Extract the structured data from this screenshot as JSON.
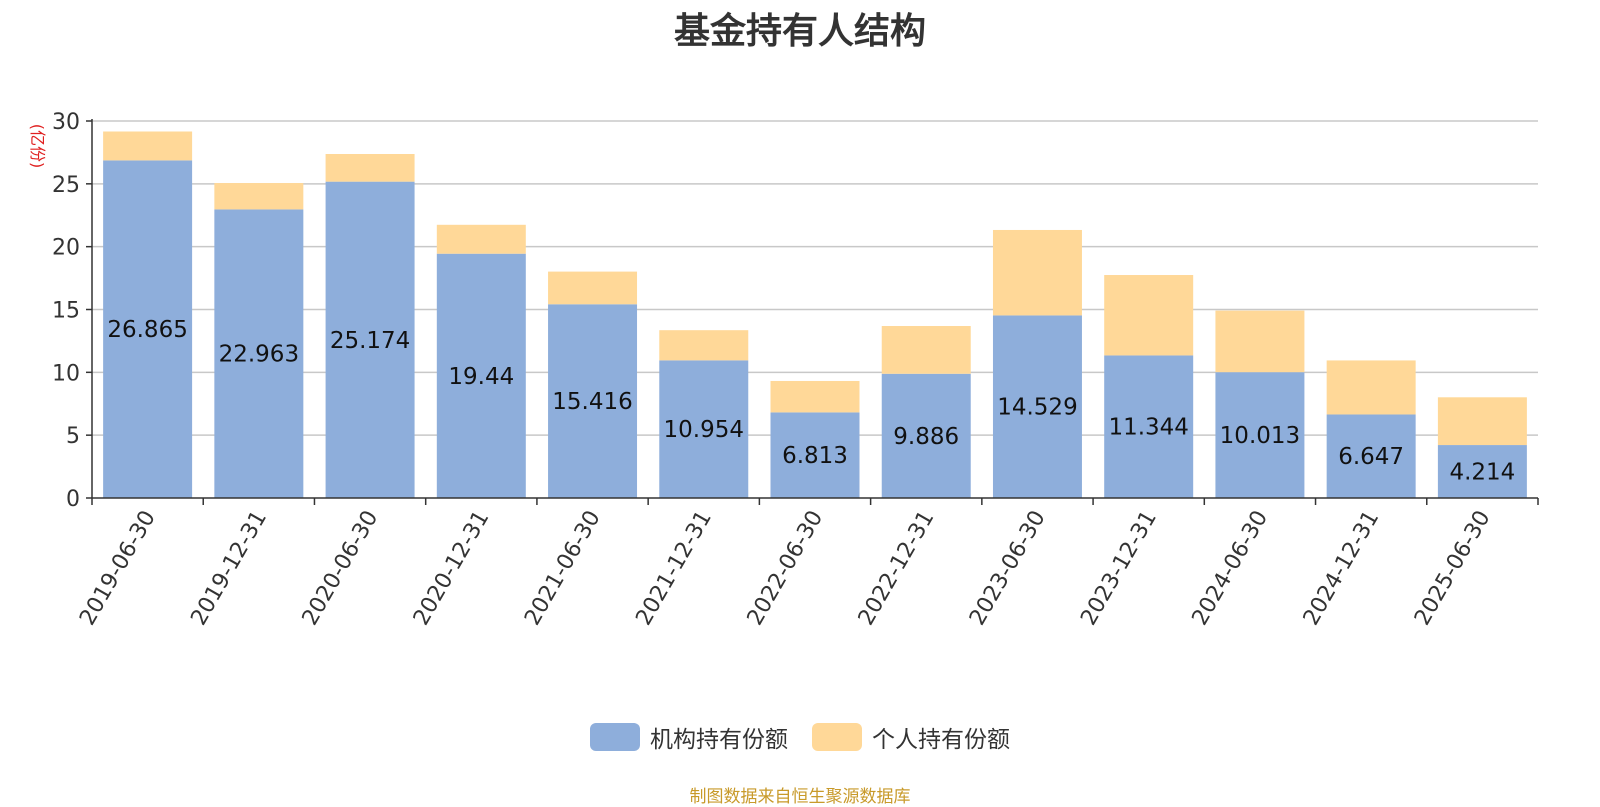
{
  "chart_data": {
    "type": "bar",
    "stacked": true,
    "title": "基金持有人结构",
    "ylabel": "(亿份)",
    "ylim": [
      0,
      30
    ],
    "yticks": [
      0,
      5,
      10,
      15,
      20,
      25,
      30
    ],
    "grid": true,
    "legend_position": "bottom",
    "categories": [
      "2019-06-30",
      "2019-12-31",
      "2020-06-30",
      "2020-12-31",
      "2021-06-30",
      "2021-12-31",
      "2022-06-30",
      "2022-12-31",
      "2023-06-30",
      "2023-12-31",
      "2024-06-30",
      "2024-12-31",
      "2025-06-30"
    ],
    "series": [
      {
        "name": "机构持有份额",
        "color": "#8eaedb",
        "show_labels": true,
        "values": [
          26.865,
          22.963,
          25.174,
          19.44,
          15.416,
          10.954,
          6.813,
          9.886,
          14.529,
          11.344,
          10.013,
          6.647,
          4.214
        ]
      },
      {
        "name": "个人持有份额",
        "color": "#ffd898",
        "show_labels": false,
        "values": [
          2.3,
          2.1,
          2.2,
          2.3,
          2.6,
          2.4,
          2.5,
          3.8,
          6.8,
          6.4,
          4.9,
          4.3,
          3.8
        ]
      }
    ]
  },
  "source_note": "制图数据来自恒生聚源数据库"
}
